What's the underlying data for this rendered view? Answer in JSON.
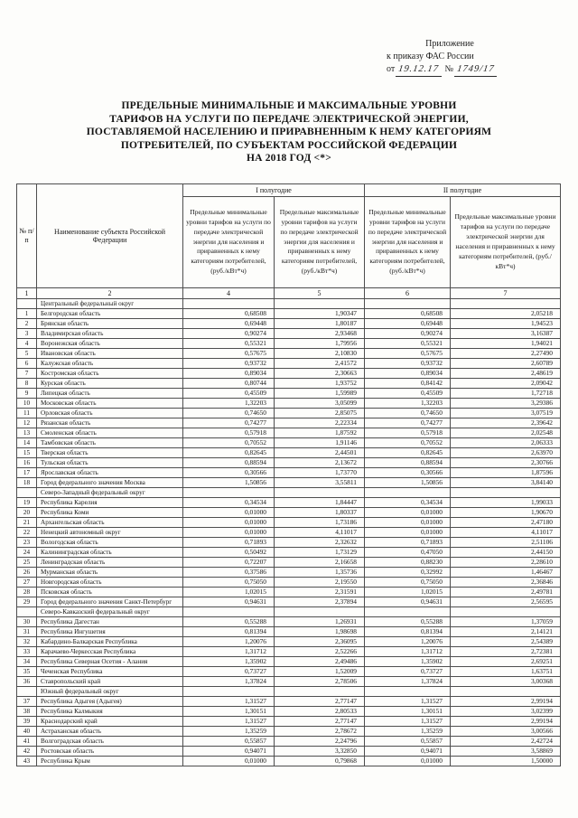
{
  "annex": {
    "line1": "Приложение",
    "line2": "к приказу ФАС России",
    "from_label": "от",
    "date_handwritten": "19.12.17",
    "no_label": "№",
    "number_handwritten": "1749/17"
  },
  "title": {
    "lines": [
      "ПРЕДЕЛЬНЫЕ МИНИМАЛЬНЫЕ И МАКСИМАЛЬНЫЕ УРОВНИ",
      "ТАРИФОВ НА УСЛУГИ ПО ПЕРЕДАЧЕ ЭЛЕКТРИЧЕСКОЙ ЭНЕРГИИ,",
      "ПОСТАВЛЯЕМОЙ НАСЕЛЕНИЮ И ПРИРАВНЕННЫМ К НЕМУ КАТЕГОРИЯМ",
      "ПОТРЕБИТЕЛЕЙ, ПО СУБЪЕКТАМ РОССИЙСКОЙ ФЕДЕРАЦИИ",
      "НА 2018 ГОД <*>"
    ]
  },
  "table": {
    "group_headers": {
      "first_half": "I полугодие",
      "second_half": "II полугодие"
    },
    "columns": {
      "no": "№ п/п",
      "subject": "Наименование субъекта Российской Федерации",
      "h4": "Предельные минимальные уровни тарифов на услуги по передаче электрической энергии для населения и приравненных к нему категориям потребителей, (руб./кВт*ч)",
      "h5": "Предельные максимальные уровни тарифов на услуги по передаче электрической энергии для населения и приравненных к нему категориям потребителей, (руб./кВт*ч)",
      "h6": "Предельные минимальные уровни тарифов на услуги по передаче электрической энергии для населения и приравненных к нему категориям потребителей, (руб./кВт*ч)",
      "h7": "Предельные максимальные уровни тарифов на услуги по передаче электрической энергии для населения и приравненных к нему категориям потребителей, (руб./кВт*ч)"
    },
    "numbering_row": [
      "1",
      "2",
      "4",
      "5",
      "6",
      "7"
    ],
    "rows": [
      {
        "type": "section",
        "name": "Центральный федеральный округ"
      },
      {
        "num": "1",
        "name": "Белгородская область",
        "v": [
          "0,68508",
          "1,90347",
          "0,68508",
          "2,05218"
        ]
      },
      {
        "num": "2",
        "name": "Брянская область",
        "v": [
          "0,69448",
          "1,80187",
          "0,69448",
          "1,94523"
        ]
      },
      {
        "num": "3",
        "name": "Владимирская область",
        "v": [
          "0,90274",
          "2,93468",
          "0,90274",
          "3,16387"
        ]
      },
      {
        "num": "4",
        "name": "Воронежская область",
        "v": [
          "0,55321",
          "1,79956",
          "0,55321",
          "1,94021"
        ]
      },
      {
        "num": "5",
        "name": "Ивановская область",
        "v": [
          "0,57675",
          "2,10830",
          "0,57675",
          "2,27490"
        ]
      },
      {
        "num": "6",
        "name": "Калужская область",
        "v": [
          "0,93732",
          "2,41572",
          "0,93732",
          "2,60789"
        ]
      },
      {
        "num": "7",
        "name": "Костромская область",
        "v": [
          "0,89034",
          "2,30663",
          "0,89034",
          "2,48619"
        ]
      },
      {
        "num": "8",
        "name": "Курская область",
        "v": [
          "0,80744",
          "1,93752",
          "0,84142",
          "2,09042"
        ]
      },
      {
        "num": "9",
        "name": "Липецкая область",
        "v": [
          "0,45509",
          "1,59989",
          "0,45509",
          "1,72718"
        ]
      },
      {
        "num": "10",
        "name": "Московская область",
        "v": [
          "1,32203",
          "3,05099",
          "1,32203",
          "3,29386"
        ]
      },
      {
        "num": "11",
        "name": "Орловская область",
        "v": [
          "0,74650",
          "2,85075",
          "0,74650",
          "3,07519"
        ]
      },
      {
        "num": "12",
        "name": "Рязанская область",
        "v": [
          "0,74277",
          "2,22334",
          "0,74277",
          "2,39642"
        ]
      },
      {
        "num": "13",
        "name": "Смоленская область",
        "v": [
          "0,57918",
          "1,87592",
          "0,57918",
          "2,02548"
        ]
      },
      {
        "num": "14",
        "name": "Тамбовская область",
        "v": [
          "0,70552",
          "1,91146",
          "0,70552",
          "2,06333"
        ]
      },
      {
        "num": "15",
        "name": "Тверская область",
        "v": [
          "0,82645",
          "2,44501",
          "0,82645",
          "2,63970"
        ]
      },
      {
        "num": "16",
        "name": "Тульская область",
        "v": [
          "0,88594",
          "2,13672",
          "0,88594",
          "2,30766"
        ]
      },
      {
        "num": "17",
        "name": "Ярославская область",
        "v": [
          "0,30566",
          "1,73770",
          "0,30566",
          "1,87596"
        ]
      },
      {
        "num": "18",
        "name": "Город федерального значения Москва",
        "v": [
          "1,50856",
          "3,55811",
          "1,50856",
          "3,84140"
        ]
      },
      {
        "type": "section",
        "name": "Северо-Западный федеральный округ"
      },
      {
        "num": "19",
        "name": "Республика Карелия",
        "v": [
          "0,34534",
          "1,84447",
          "0,34534",
          "1,99033"
        ]
      },
      {
        "num": "20",
        "name": "Республика Коми",
        "v": [
          "0,01000",
          "1,80337",
          "0,01000",
          "1,90670"
        ]
      },
      {
        "num": "21",
        "name": "Архангельская область",
        "v": [
          "0,01000",
          "1,73186",
          "0,01000",
          "2,47180"
        ]
      },
      {
        "num": "22",
        "name": "Ненецкий автономный округ",
        "v": [
          "0,01000",
          "4,11017",
          "0,01000",
          "4,11017"
        ]
      },
      {
        "num": "23",
        "name": "Вологодская область",
        "v": [
          "0,71893",
          "2,32632",
          "0,71893",
          "2,51106"
        ]
      },
      {
        "num": "24",
        "name": "Калининградская область",
        "v": [
          "0,50492",
          "1,73129",
          "0,47050",
          "2,44150"
        ]
      },
      {
        "num": "25",
        "name": "Ленинградская область",
        "v": [
          "0,72207",
          "2,16658",
          "0,88230",
          "2,28610"
        ]
      },
      {
        "num": "26",
        "name": "Мурманская область",
        "v": [
          "0,37586",
          "1,35736",
          "0,32992",
          "1,46467"
        ]
      },
      {
        "num": "27",
        "name": "Новгородская область",
        "v": [
          "0,75050",
          "2,19550",
          "0,75050",
          "2,36846"
        ]
      },
      {
        "num": "28",
        "name": "Псковская область",
        "v": [
          "1,02015",
          "2,31591",
          "1,02015",
          "2,49781"
        ]
      },
      {
        "num": "29",
        "name": "Город федерального значения Санкт-Петербург",
        "v": [
          "0,94631",
          "2,37894",
          "0,94631",
          "2,56595"
        ]
      },
      {
        "type": "section",
        "name": "Северо-Кавказский федеральный округ"
      },
      {
        "num": "30",
        "name": "Республика Дагестан",
        "v": [
          "0,55288",
          "1,26931",
          "0,55288",
          "1,37059"
        ]
      },
      {
        "num": "31",
        "name": "Республика Ингушетия",
        "v": [
          "0,81394",
          "1,98698",
          "0,81394",
          "2,14121"
        ]
      },
      {
        "num": "32",
        "name": "Кабардино-Балкарская Республика",
        "v": [
          "1,20076",
          "2,36095",
          "1,20076",
          "2,54389"
        ]
      },
      {
        "num": "33",
        "name": "Карачаево-Черкесская Республика",
        "v": [
          "1,31712",
          "2,52266",
          "1,31712",
          "2,72381"
        ]
      },
      {
        "num": "34",
        "name": "Республика Северная Осетия - Алания",
        "v": [
          "1,35902",
          "2,49486",
          "1,35902",
          "2,69251"
        ]
      },
      {
        "num": "35",
        "name": "Чеченская Республика",
        "v": [
          "0,73727",
          "1,52009",
          "0,73727",
          "1,63751"
        ]
      },
      {
        "num": "36",
        "name": "Ставропольский край",
        "v": [
          "1,37824",
          "2,78506",
          "1,37824",
          "3,00368"
        ]
      },
      {
        "type": "section",
        "name": "Южный федеральный округ"
      },
      {
        "num": "37",
        "name": "Республика Адыгея (Адыгея)",
        "v": [
          "1,31527",
          "2,77147",
          "1,31527",
          "2,99194"
        ]
      },
      {
        "num": "38",
        "name": "Республика Калмыкия",
        "v": [
          "1,30151",
          "2,80533",
          "1,30151",
          "3,02399"
        ]
      },
      {
        "num": "39",
        "name": "Краснодарский край",
        "v": [
          "1,31527",
          "2,77147",
          "1,31527",
          "2,99194"
        ]
      },
      {
        "num": "40",
        "name": "Астраханская область",
        "v": [
          "1,35259",
          "2,78672",
          "1,35259",
          "3,00566"
        ]
      },
      {
        "num": "41",
        "name": "Волгоградская область",
        "v": [
          "0,55857",
          "2,24796",
          "0,55857",
          "2,42724"
        ]
      },
      {
        "num": "42",
        "name": "Ростовская область",
        "v": [
          "0,94071",
          "3,32850",
          "0,94071",
          "3,58869"
        ]
      },
      {
        "num": "43",
        "name": "Республика Крым",
        "v": [
          "0,01000",
          "0,79868",
          "0,01000",
          "1,50000"
        ]
      }
    ]
  }
}
